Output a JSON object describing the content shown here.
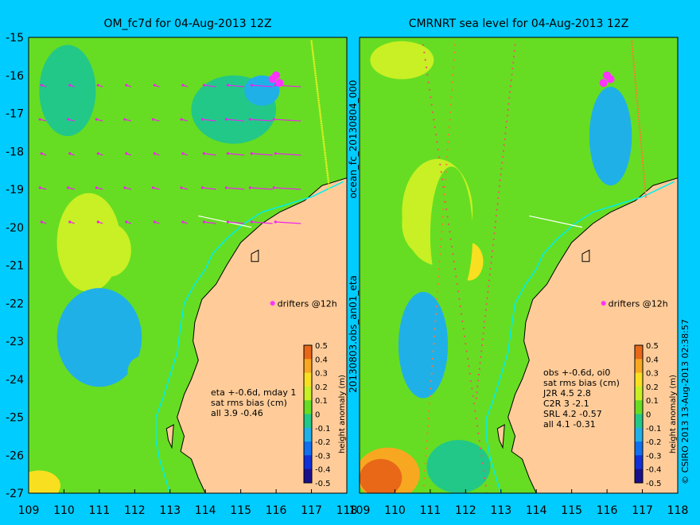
{
  "chart_data": [
    {
      "type": "heatmap",
      "title": "OM_fc7d for 04-Aug-2013 12Z",
      "xlim": [
        109,
        118
      ],
      "ylim": [
        -27,
        -15
      ],
      "xticks": [
        "109",
        "110",
        "111",
        "112",
        "113",
        "114",
        "115",
        "116",
        "117",
        "118"
      ],
      "yticks": [
        "-15",
        "-16",
        "-17",
        "-18",
        "-19",
        "-20",
        "-21",
        "-22",
        "-23",
        "-24",
        "-25",
        "-26",
        "-27"
      ],
      "annotations": {
        "drifters": "drifters @12h",
        "stats": [
          "eta +-0.6d, mday 1",
          "sat rms bias (cm)",
          "all 3.9 -0.46"
        ]
      },
      "colorbar": {
        "label": "height anomaly (m)",
        "ticks": [
          "0.5",
          "0.4",
          "0.3",
          "0.2",
          "0.1",
          "0",
          "-0.1",
          "-0.2",
          "-0.3",
          "-0.4",
          "-0.5"
        ]
      },
      "contour_blobs": [
        {
          "x": 111.3,
          "y": -20.6,
          "value": 0.18,
          "rx": 0.6,
          "ry": 0.7
        },
        {
          "x": 110.7,
          "y": -20.4,
          "value": 0.12,
          "rx": 0.9,
          "ry": 1.3
        },
        {
          "x": 112.3,
          "y": -19.4,
          "value": 0.08,
          "rx": 0.8,
          "ry": 0.8
        },
        {
          "x": 111.0,
          "y": -22.9,
          "value": -0.12,
          "rx": 1.2,
          "ry": 1.3
        },
        {
          "x": 111.2,
          "y": -23.0,
          "value": -0.16,
          "rx": 0.4,
          "ry": 0.4
        },
        {
          "x": 110.1,
          "y": -16.4,
          "value": -0.04,
          "rx": 0.8,
          "ry": 1.2
        },
        {
          "x": 114.8,
          "y": -16.9,
          "value": -0.08,
          "rx": 1.2,
          "ry": 0.9
        },
        {
          "x": 115.6,
          "y": -16.4,
          "value": -0.12,
          "rx": 0.5,
          "ry": 0.4
        },
        {
          "x": 109.8,
          "y": -26.2,
          "value": 0.08,
          "rx": 1.5,
          "ry": 0.8
        },
        {
          "x": 109.3,
          "y": -26.8,
          "value": 0.25,
          "rx": 0.6,
          "ry": 0.4
        },
        {
          "x": 112.2,
          "y": -23.8,
          "value": 0.05,
          "rx": 0.4,
          "ry": 0.4
        }
      ],
      "drifter_points": [
        [
          116.0,
          -16.0
        ],
        [
          115.9,
          -16.1
        ],
        [
          116.1,
          -16.2
        ]
      ],
      "drifter_marker": [
        115.9,
        -22.0
      ]
    },
    {
      "type": "heatmap",
      "title": "CMRNRT sea level  for 04-Aug-2013 12Z",
      "xlim": [
        109,
        118
      ],
      "ylim": [
        -27,
        -15
      ],
      "xticks": [
        "109",
        "110",
        "111",
        "112",
        "113",
        "114",
        "115",
        "116",
        "117",
        "118"
      ],
      "yticks": [],
      "annotations": {
        "drifters": "drifters @12h",
        "stats": [
          "obs +-0.6d, oi0",
          "sat rms bias (cm)",
          "J2R   4.5  2.8",
          "C2R    3  -2.1",
          "SRL   4.2  -0.57",
          "all    4.1  -0.31"
        ]
      },
      "colorbar": {
        "label": "height anomaly (m)",
        "ticks": [
          "0.5",
          "0.4",
          "0.3",
          "0.2",
          "0.1",
          "0",
          "-0.1",
          "-0.2",
          "-0.3",
          "-0.4",
          "-0.5"
        ]
      },
      "contour_blobs": [
        {
          "x": 110.8,
          "y": -19.9,
          "value": 0.18,
          "rx": 0.6,
          "ry": 0.8
        },
        {
          "x": 111.2,
          "y": -19.6,
          "value": 0.1,
          "rx": 1.0,
          "ry": 1.4
        },
        {
          "x": 112.1,
          "y": -20.9,
          "value": 0.2,
          "rx": 0.4,
          "ry": 0.5
        },
        {
          "x": 111.6,
          "y": -20.2,
          "value": 0.05,
          "rx": 0.6,
          "ry": 1.8
        },
        {
          "x": 110.8,
          "y": -23.1,
          "value": -0.15,
          "rx": 0.7,
          "ry": 1.4
        },
        {
          "x": 110.8,
          "y": -22.6,
          "value": -0.2,
          "rx": 0.3,
          "ry": 0.5
        },
        {
          "x": 116.1,
          "y": -17.6,
          "value": -0.12,
          "rx": 0.6,
          "ry": 1.3
        },
        {
          "x": 113.1,
          "y": -17.9,
          "value": 0.06,
          "rx": 0.9,
          "ry": 0.5
        },
        {
          "x": 110.2,
          "y": -15.6,
          "value": 0.1,
          "rx": 0.9,
          "ry": 0.5
        },
        {
          "x": 109.8,
          "y": -26.5,
          "value": 0.35,
          "rx": 0.9,
          "ry": 0.7
        },
        {
          "x": 109.6,
          "y": -26.6,
          "value": 0.42,
          "rx": 0.6,
          "ry": 0.5
        },
        {
          "x": 111.8,
          "y": -26.3,
          "value": -0.08,
          "rx": 0.9,
          "ry": 0.7
        },
        {
          "x": 116.8,
          "y": -19.2,
          "value": 0.08,
          "rx": 0.4,
          "ry": 0.3
        }
      ],
      "drifter_points": [
        [
          116.0,
          -16.0
        ],
        [
          115.9,
          -16.2
        ],
        [
          116.1,
          -16.1
        ]
      ],
      "drifter_marker": [
        115.9,
        -22.0
      ]
    }
  ],
  "side_labels": {
    "middle_top": "ocean_fc_20130804_000",
    "middle_bottom": "20130803.obs_an01_eta",
    "right": "© CSIRO 2013   13-Aug-2013 02:38:57"
  },
  "colors": {
    "background": "#00ccff",
    "land": "#ffcc99",
    "zero_level": "#66dd22",
    "vectors": "#ee22ee",
    "isobath": "#00eeee"
  }
}
